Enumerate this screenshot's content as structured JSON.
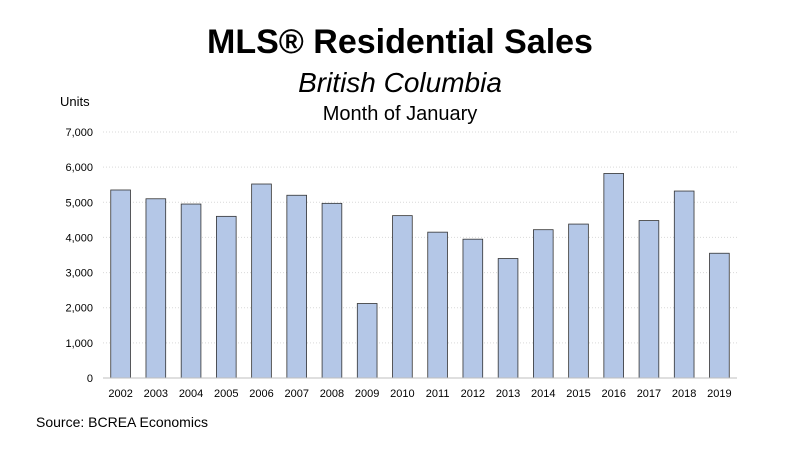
{
  "chart_data": {
    "type": "bar",
    "title": "MLS® Residential Sales",
    "subtitle": "British Columbia",
    "period": "Month of January",
    "ylabel": "Units",
    "xlabel": "",
    "source": "Source: BCREA Economics",
    "categories": [
      "2002",
      "2003",
      "2004",
      "2005",
      "2006",
      "2007",
      "2008",
      "2009",
      "2010",
      "2011",
      "2012",
      "2013",
      "2014",
      "2015",
      "2016",
      "2017",
      "2018",
      "2019"
    ],
    "values": [
      5350,
      5100,
      4950,
      4600,
      5520,
      5200,
      4970,
      2120,
      4620,
      4150,
      3950,
      3400,
      4220,
      4380,
      5820,
      4480,
      5320,
      3550
    ],
    "yticks": [
      0,
      1000,
      2000,
      3000,
      4000,
      5000,
      6000,
      7000
    ],
    "ytick_labels": [
      "0",
      "1,000",
      "2,000",
      "3,000",
      "4,000",
      "5,000",
      "6,000",
      "7,000"
    ],
    "ylim": [
      0,
      7000
    ],
    "grid": true,
    "bar_color": "#b4c7e7",
    "bar_edge_color": "#333333",
    "grid_color": "#d9d9d9"
  }
}
